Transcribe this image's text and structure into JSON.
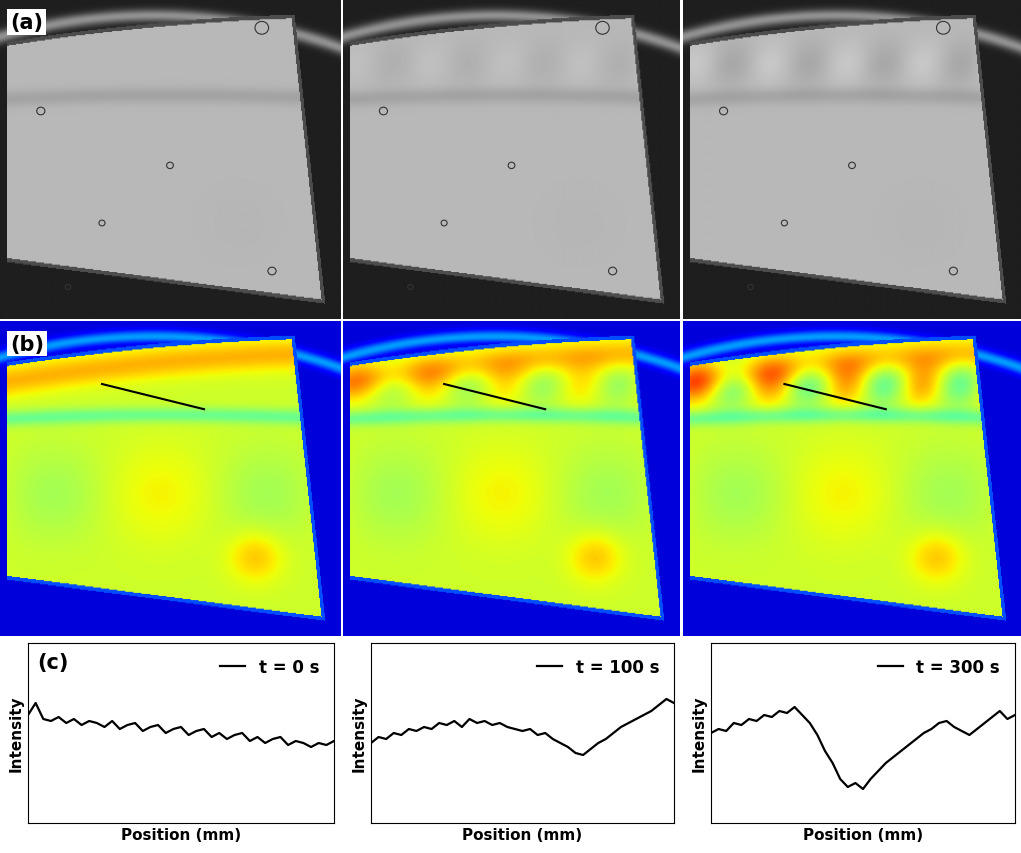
{
  "panel_labels": [
    "(a)",
    "(b)",
    "(c)"
  ],
  "chart_data": [
    {
      "type": "line",
      "xlabel": "Position (mm)",
      "ylabel": "Intensity",
      "x": [
        0,
        1,
        2,
        3,
        4,
        5,
        6,
        7,
        8,
        9,
        10,
        11,
        12,
        13,
        14,
        15,
        16,
        17,
        18,
        19,
        20,
        21,
        22,
        23,
        24,
        25,
        26,
        27,
        28,
        29,
        30,
        31,
        32,
        33,
        34,
        35,
        36,
        37,
        38,
        39,
        40
      ],
      "series": [
        {
          "name": "t = 0 s",
          "color": "#000000",
          "values": [
            64,
            70,
            62,
            61,
            63,
            60,
            62,
            59,
            61,
            60,
            58,
            61,
            57,
            59,
            60,
            56,
            58,
            59,
            55,
            57,
            58,
            54,
            56,
            57,
            53,
            55,
            52,
            54,
            55,
            51,
            53,
            50,
            52,
            53,
            49,
            51,
            50,
            48,
            50,
            49,
            51
          ]
        }
      ],
      "xlim": [
        0,
        40
      ],
      "ylim": [
        10,
        100
      ],
      "legend": "upper right",
      "tick_labels": false
    },
    {
      "type": "line",
      "xlabel": "Position (mm)",
      "ylabel": "Intensity",
      "x": [
        0,
        1,
        2,
        3,
        4,
        5,
        6,
        7,
        8,
        9,
        10,
        11,
        12,
        13,
        14,
        15,
        16,
        17,
        18,
        19,
        20,
        21,
        22,
        23,
        24,
        25,
        26,
        27,
        28,
        29,
        30,
        31,
        32,
        33,
        34,
        35,
        36,
        37,
        38,
        39,
        40
      ],
      "series": [
        {
          "name": "t = 100 s",
          "color": "#000000",
          "values": [
            50,
            53,
            52,
            55,
            54,
            57,
            56,
            58,
            57,
            60,
            59,
            61,
            58,
            62,
            60,
            61,
            59,
            60,
            58,
            57,
            56,
            57,
            54,
            55,
            52,
            50,
            48,
            45,
            44,
            47,
            50,
            52,
            55,
            58,
            60,
            62,
            64,
            66,
            69,
            72,
            70
          ]
        }
      ],
      "xlim": [
        0,
        40
      ],
      "ylim": [
        10,
        100
      ],
      "legend": "upper right",
      "tick_labels": false
    },
    {
      "type": "line",
      "xlabel": "Position (mm)",
      "ylabel": "Intensity",
      "x": [
        0,
        1,
        2,
        3,
        4,
        5,
        6,
        7,
        8,
        9,
        10,
        11,
        12,
        13,
        14,
        15,
        16,
        17,
        18,
        19,
        20,
        21,
        22,
        23,
        24,
        25,
        26,
        27,
        28,
        29,
        30,
        31,
        32,
        33,
        34,
        35,
        36,
        37,
        38,
        39,
        40
      ],
      "series": [
        {
          "name": "t = 300 s",
          "color": "#000000",
          "values": [
            55,
            57,
            56,
            60,
            59,
            62,
            61,
            64,
            63,
            66,
            65,
            68,
            64,
            60,
            54,
            46,
            40,
            32,
            28,
            30,
            27,
            32,
            36,
            40,
            43,
            46,
            49,
            52,
            55,
            57,
            60,
            61,
            58,
            56,
            54,
            57,
            60,
            63,
            66,
            62,
            64
          ]
        }
      ],
      "xlim": [
        0,
        40
      ],
      "ylim": [
        10,
        100
      ],
      "legend": "upper right",
      "tick_labels": false
    }
  ]
}
